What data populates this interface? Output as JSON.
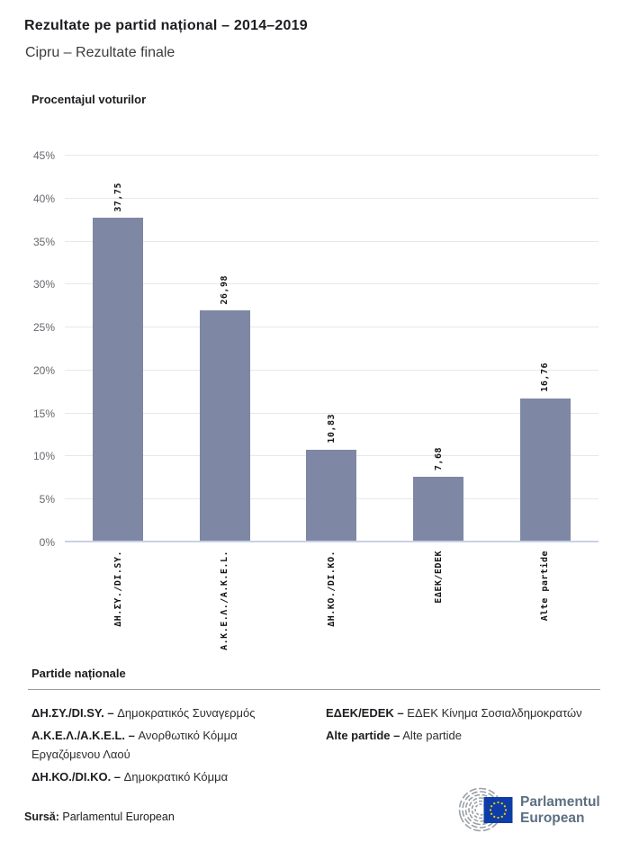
{
  "header": {
    "title": "Rezultate pe partid național – 2014–2019",
    "subtitle": "Cipru – Rezultate finale"
  },
  "chart_data": {
    "type": "bar",
    "title": "Procentajul voturilor",
    "categories": [
      "ΔΗ.ΣΥ./DI.SY.",
      "Α.Κ.Ε.Λ./A.K.E.L.",
      "ΔΗ.ΚΟ./DI.KO.",
      "ΕΔΕΚ/EDEK",
      "Alte partide"
    ],
    "values": [
      37.75,
      26.98,
      10.83,
      7.68,
      16.76
    ],
    "value_labels": [
      "37,75",
      "26,98",
      "10,83",
      "7,68",
      "16,76"
    ],
    "ylim": [
      0,
      45
    ],
    "ytick_values": [
      0,
      5,
      10,
      15,
      20,
      25,
      30,
      35,
      40,
      45
    ],
    "ytick_labels": [
      "0%",
      "5%",
      "10%",
      "15%",
      "20%",
      "25%",
      "30%",
      "35%",
      "40%",
      "45%"
    ],
    "bar_color": "#7e88a4",
    "grid": true,
    "legend_position": "none",
    "value_label_rotation": -90,
    "xtick_rotation": -90
  },
  "legend": {
    "heading": "Partide naționale",
    "columns": [
      [
        {
          "name": "ΔΗ.ΣΥ./DI.SY. –",
          "desc": "Δημοκρατικός Συναγερμός"
        },
        {
          "name": "Α.Κ.Ε.Λ./A.K.E.L. –",
          "desc": "Ανορθωτικό Κόμμα Εργαζόμενου Λαού"
        },
        {
          "name": "ΔΗ.ΚΟ./DI.KO. –",
          "desc": "Δημοκρατικό Κόμμα"
        }
      ],
      [
        {
          "name": "ΕΔΕΚ/EDEK –",
          "desc": "ΕΔΕΚ Κίνημα Σοσιαλδημοκρατών"
        },
        {
          "name": "Alte partide –",
          "desc": "Alte partide"
        }
      ]
    ]
  },
  "footer": {
    "source_label": "Sursă:",
    "source_value": "Parlamentul European",
    "logo_line1": "Parlamentul",
    "logo_line2": "European",
    "logo_colors": {
      "flag_blue": "#0d3ea8",
      "star_yellow": "#ffcc00",
      "arc_gray": "#9aa0a5",
      "text_blue_gray": "#5c7082"
    }
  }
}
